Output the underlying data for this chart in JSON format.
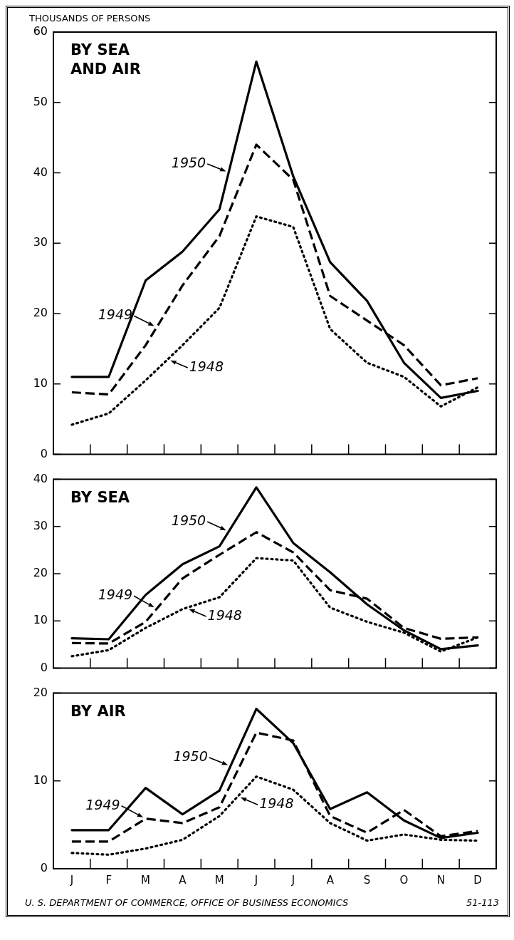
{
  "chart_data": [
    {
      "type": "line",
      "title": "BY SEA AND AIR",
      "ylabel": "THOUSANDS OF PERSONS",
      "categories": [
        null,
        null,
        null,
        null,
        null,
        null,
        null,
        null,
        null,
        null,
        null,
        null
      ],
      "ylim": [
        0,
        60
      ],
      "yticks": [
        0,
        10,
        20,
        30,
        40,
        50,
        60
      ],
      "grid": false,
      "legend": "left",
      "marker": "none",
      "tick_labels": "y",
      "series": [
        {
          "name": "1950",
          "color": "#000000",
          "line_style": "solid",
          "values": [
            11,
            11,
            24.7,
            28.8,
            34.8,
            55.8,
            39.5,
            27.3,
            21.8,
            13,
            8,
            9
          ]
        },
        {
          "name": "1949",
          "color": "#000000",
          "line_style": "dashed",
          "values": [
            8.8,
            8.5,
            15.5,
            24,
            31,
            44,
            39,
            22.5,
            19,
            15.5,
            9.8,
            10.8
          ]
        },
        {
          "name": "1948",
          "color": "#000000",
          "line_style": "dotted",
          "values": [
            4.2,
            5.8,
            10.5,
            15.5,
            20.8,
            33.8,
            32.3,
            17.8,
            13,
            11,
            6.8,
            9.5
          ]
        }
      ]
    },
    {
      "type": "line",
      "title": "BY SEA",
      "categories": [
        null,
        null,
        null,
        null,
        null,
        null,
        null,
        null,
        null,
        null,
        null,
        null
      ],
      "ylim": [
        0,
        40
      ],
      "yticks": [
        0,
        10,
        20,
        30,
        40
      ],
      "grid": false,
      "legend": "left",
      "marker": "none",
      "tick_labels": "y",
      "series": [
        {
          "name": "1950",
          "color": "#000000",
          "line_style": "solid",
          "values": [
            6.3,
            6.1,
            15.5,
            22,
            25.8,
            38.3,
            26.5,
            20.3,
            13.5,
            8,
            4,
            4.8
          ]
        },
        {
          "name": "1949",
          "color": "#000000",
          "line_style": "dashed",
          "values": [
            5.3,
            5.2,
            9.8,
            19,
            24,
            28.8,
            24.5,
            16.5,
            14.7,
            8.5,
            6.2,
            6.5
          ]
        },
        {
          "name": "1948",
          "color": "#000000",
          "line_style": "dotted",
          "values": [
            2.5,
            3.8,
            8.5,
            12.5,
            15,
            23.3,
            22.8,
            12.8,
            9.8,
            7.5,
            3.5,
            6.5
          ]
        }
      ]
    },
    {
      "type": "line",
      "title": "BY AIR",
      "categories": [
        "J",
        "F",
        "M",
        "A",
        "M",
        "J",
        "J",
        "A",
        "S",
        "O",
        "N",
        "D"
      ],
      "ylim": [
        0,
        20
      ],
      "yticks": [
        0,
        10,
        20
      ],
      "grid": false,
      "legend": "left",
      "marker": "none",
      "annotations": [
        "U. S. DEPARTMENT OF COMMERCE, OFFICE OF BUSINESS ECONOMICS",
        "51-113"
      ],
      "series": [
        {
          "name": "1950",
          "color": "#000000",
          "line_style": "solid",
          "values": [
            4.4,
            4.4,
            9.2,
            6.2,
            8.9,
            18.2,
            14.3,
            6.8,
            8.7,
            5.5,
            3.5,
            4.1
          ]
        },
        {
          "name": "1949",
          "color": "#000000",
          "line_style": "dashed",
          "values": [
            3.1,
            3.1,
            5.7,
            5.2,
            7,
            15.5,
            14.6,
            6,
            4.1,
            6.7,
            3.7,
            4.3
          ]
        },
        {
          "name": "1948",
          "color": "#000000",
          "line_style": "dotted",
          "values": [
            1.8,
            1.6,
            2.3,
            3.3,
            6,
            10.5,
            9,
            5.2,
            3.2,
            3.9,
            3.3,
            3.2
          ]
        }
      ]
    }
  ]
}
